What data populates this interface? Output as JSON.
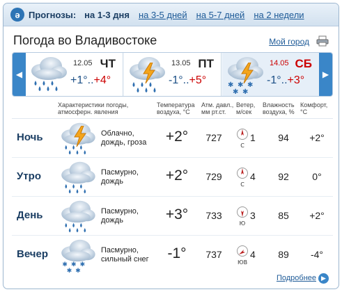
{
  "nav": {
    "label": "Прогнозы:",
    "current": "на 1-3 дня",
    "links": [
      "на 3-5 дней",
      "на 5-7 дней",
      "на 2 недели"
    ]
  },
  "header": {
    "title": "Погода во Владивостоке",
    "my_city": "Мой город"
  },
  "days": [
    {
      "date": "12.05",
      "name": "ЧТ",
      "t_min": "+1°",
      "sep": "..",
      "t_max": "+4°",
      "weather_icon": "cloud-rain-icon",
      "weekend": false
    },
    {
      "date": "13.05",
      "name": "ПТ",
      "t_min": "-1°",
      "sep": "..",
      "t_max": "+5°",
      "weather_icon": "cloud-thunder-rain-icon",
      "weekend": false
    },
    {
      "date": "14.05",
      "name": "СБ",
      "t_min": "-1°",
      "sep": "..",
      "t_max": "+3°",
      "weather_icon": "cloud-thunder-snow-icon",
      "weekend": true
    }
  ],
  "table": {
    "headers": {
      "conditions": "Характеристики погоды, атмосферн. явления",
      "temperature": "Температура воздуха, °С",
      "pressure": "Атм. давл., мм рт.ст.",
      "wind": "Ветер, м/сек",
      "humidity": "Влажность воздуха, %",
      "comfort": "Комфорт, °С"
    },
    "rows": [
      {
        "period": "Ночь",
        "desc_1": "Облачно,",
        "desc_2": "дождь, гроза",
        "temp": "+2°",
        "pressure": "727",
        "wind_dir": "С",
        "wind_speed": "1",
        "humidity": "94",
        "comfort": "+2°",
        "icon": "cloud-thunder-rain-icon"
      },
      {
        "period": "Утро",
        "desc_1": "Пасмурно,",
        "desc_2": "дождь",
        "temp": "+2°",
        "pressure": "729",
        "wind_dir": "С",
        "wind_speed": "4",
        "humidity": "92",
        "comfort": "0°",
        "icon": "cloud-rain-icon"
      },
      {
        "period": "День",
        "desc_1": "Пасмурно,",
        "desc_2": "дождь",
        "temp": "+3°",
        "pressure": "733",
        "wind_dir": "Ю",
        "wind_speed": "3",
        "humidity": "85",
        "comfort": "+2°",
        "icon": "cloud-rain-icon"
      },
      {
        "period": "Вечер",
        "desc_1": "Пасмурно,",
        "desc_2": "сильный снег",
        "temp": "-1°",
        "pressure": "737",
        "wind_dir": "ЮВ",
        "wind_speed": "4",
        "humidity": "89",
        "comfort": "-4°",
        "icon": "cloud-snow-icon"
      }
    ]
  },
  "footer": {
    "more": "Подробнее"
  },
  "colors": {
    "accent": "#3a86c8",
    "link": "#1d5a97",
    "weekend": "#cc0000",
    "negative_temp": "#1b4f86"
  }
}
